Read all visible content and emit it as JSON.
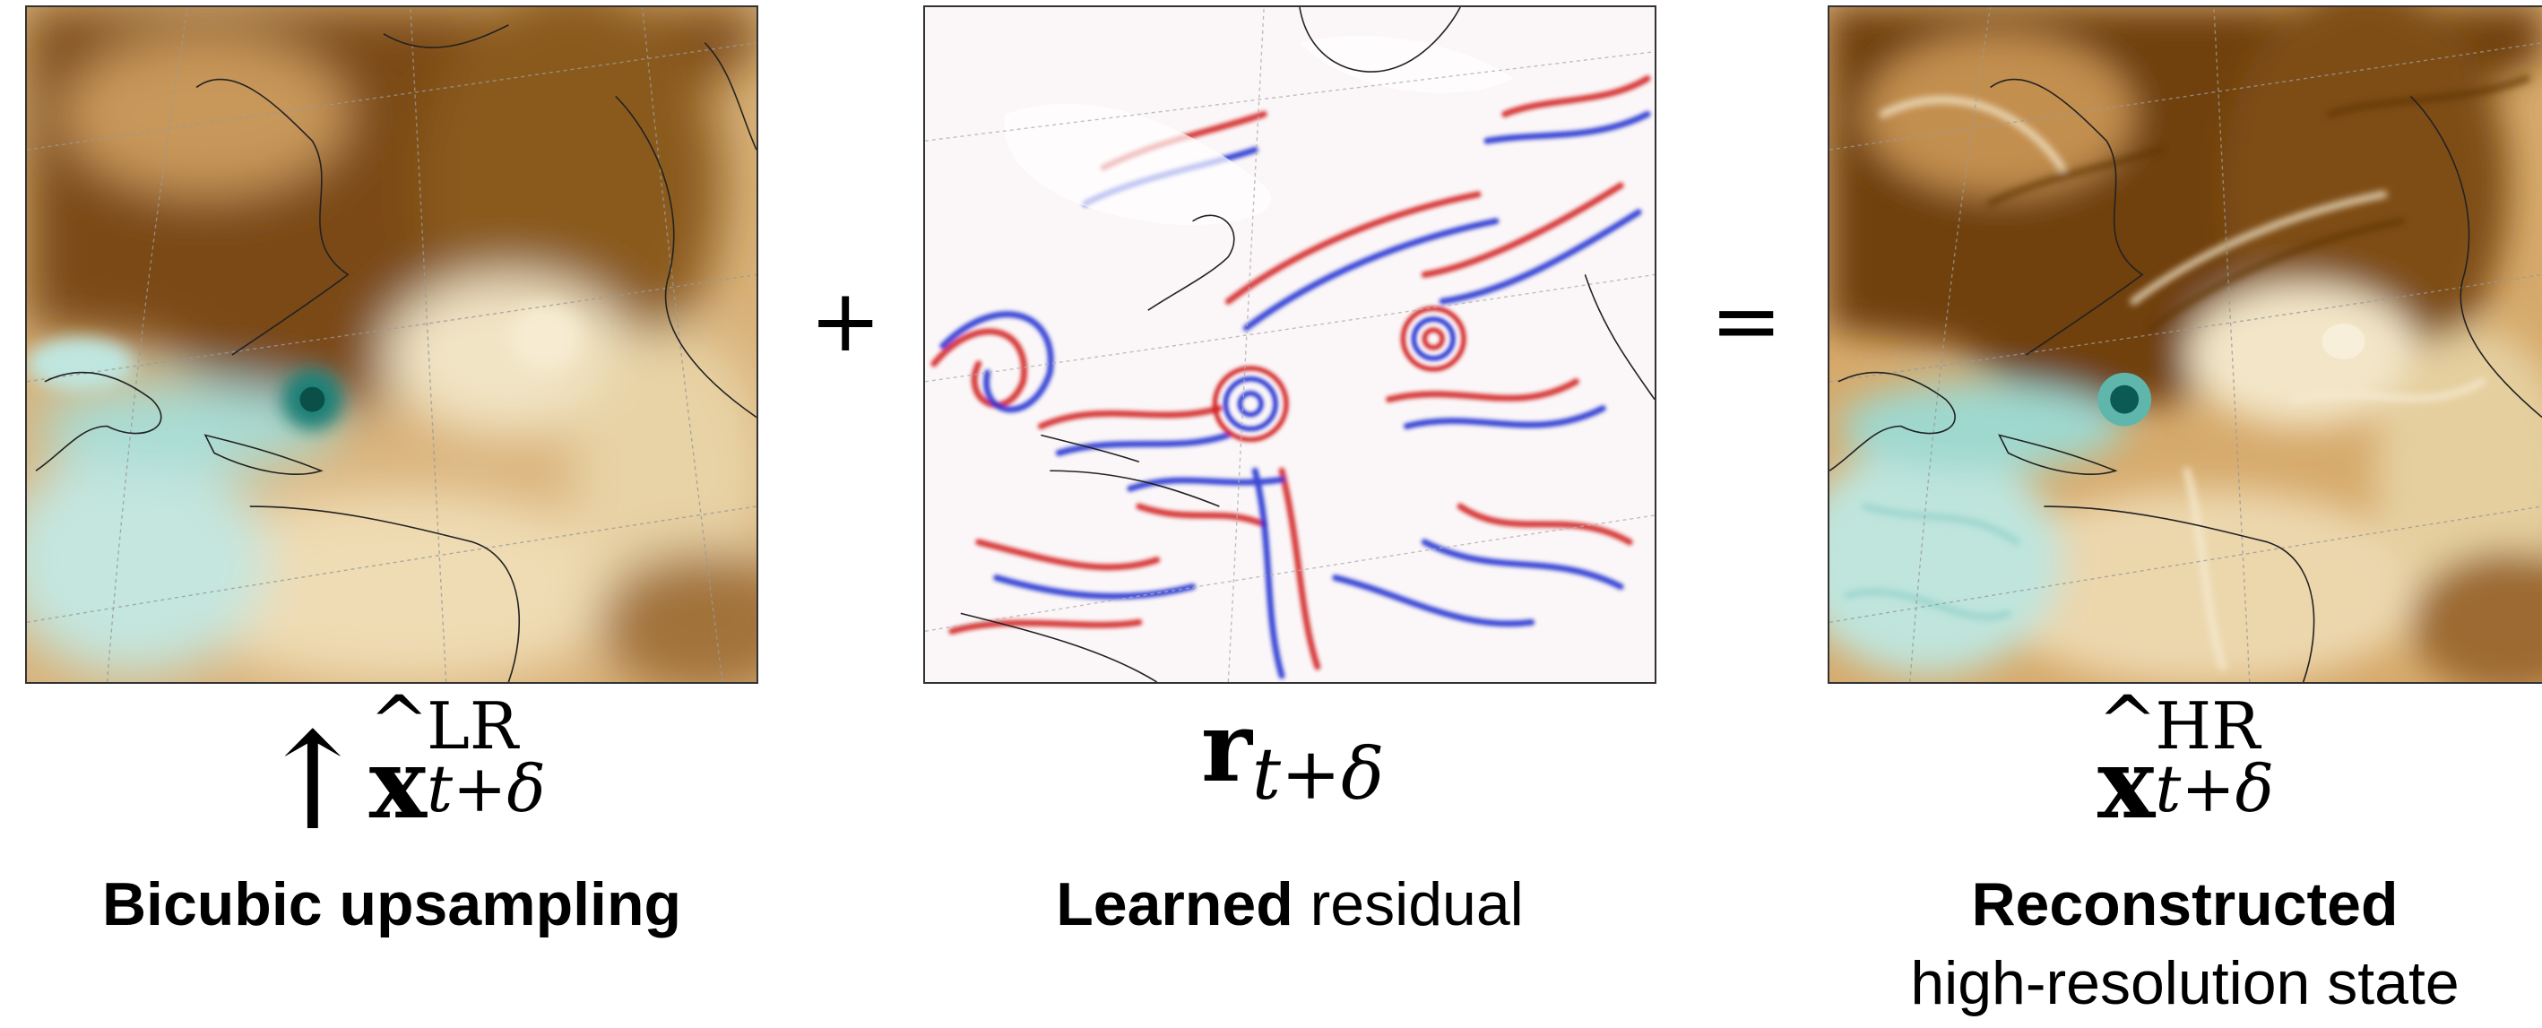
{
  "panels": {
    "left": {
      "colormap": [
        "#6b3d06",
        "#c89a57",
        "#f5ebd0",
        "#9fd8d0",
        "#0f6b63"
      ]
    },
    "middle": {
      "colormap": [
        "#0000cc",
        "#ffffff",
        "#cc0000"
      ]
    },
    "right": {
      "colormap": [
        "#6b3d06",
        "#c89a57",
        "#f5ebd0",
        "#9fd8d0",
        "#0f6b63"
      ]
    }
  },
  "operators": {
    "plus": "+",
    "equals": "="
  },
  "equations": {
    "left": {
      "prefix": "↑",
      "base": "x",
      "hat": "^",
      "sup": "LR",
      "sub": "t+δ"
    },
    "middle": {
      "base": "r",
      "sub": "t+δ"
    },
    "right": {
      "base": "x",
      "hat": "^",
      "sup": "HR",
      "sub": "t+δ"
    }
  },
  "captions": {
    "left": {
      "bold": "Bicubic upsampling",
      "rest": ""
    },
    "middle": {
      "bold": "Learned",
      "rest": " residual"
    },
    "right": {
      "bold": "Reconstructed",
      "line2": "high-resolution state"
    }
  }
}
